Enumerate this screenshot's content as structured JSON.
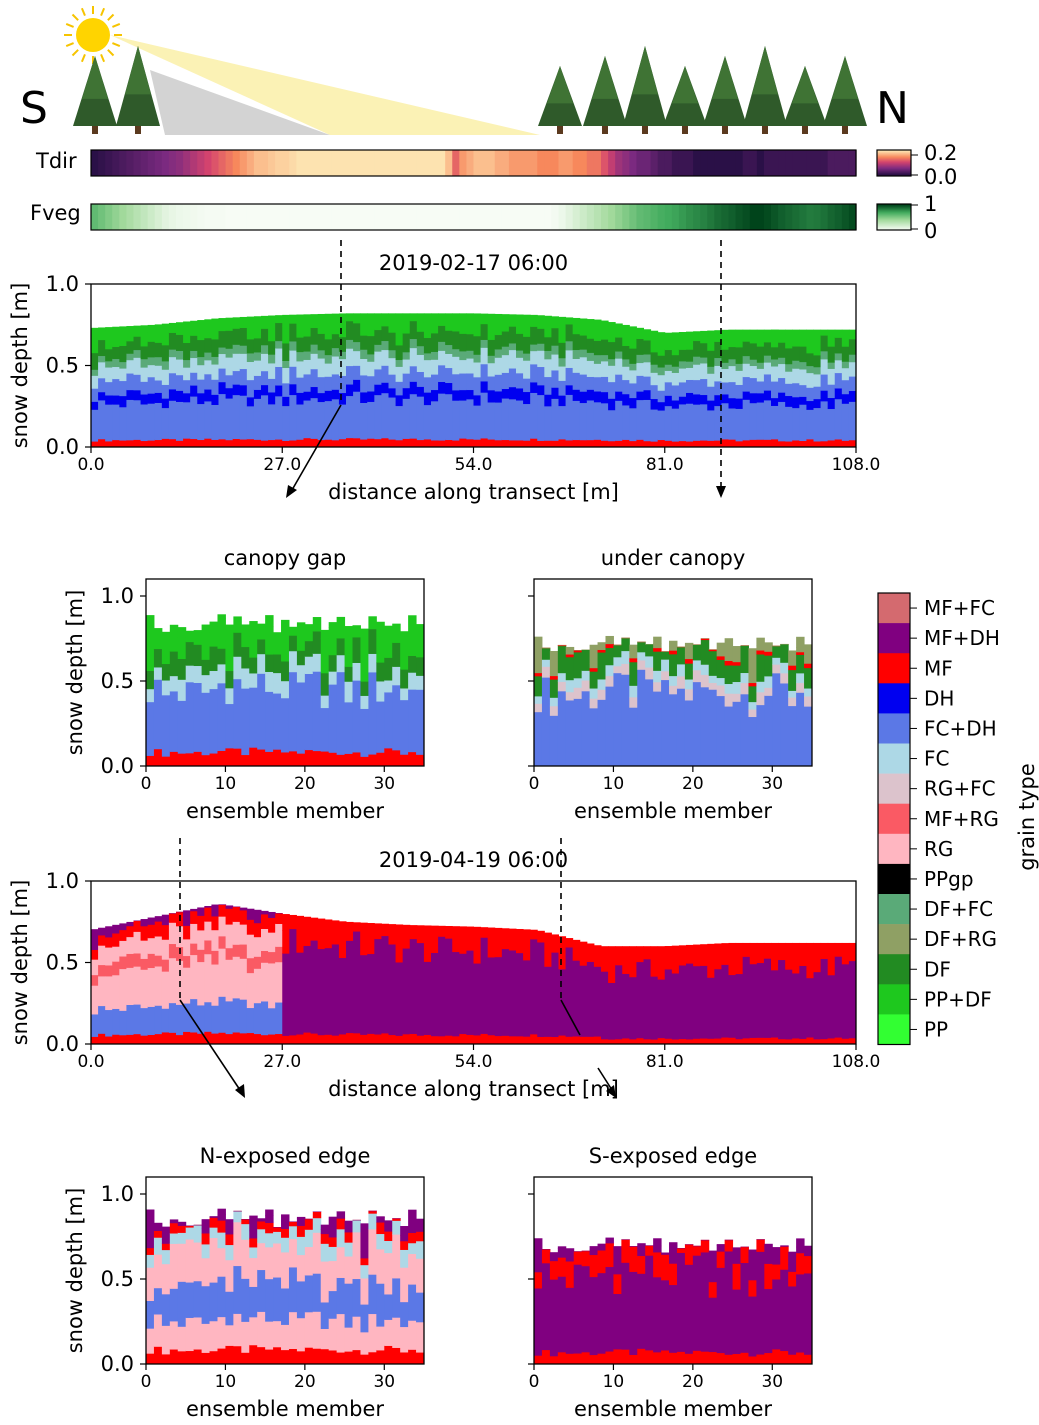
{
  "header": {
    "south": "S",
    "north": "N"
  },
  "strips": {
    "tdir": {
      "label": "Tdir",
      "cb_max": "0.2",
      "cb_min": "0.0",
      "values": [
        0.01,
        0.015,
        0.02,
        0.025,
        0.03,
        0.035,
        0.04,
        0.045,
        0.05,
        0.055,
        0.06,
        0.065,
        0.07,
        0.08,
        0.09,
        0.1,
        0.11,
        0.12,
        0.13,
        0.14,
        0.15,
        0.16,
        0.17,
        0.18,
        0.18,
        0.185,
        0.19,
        0.19,
        0.195,
        0.2,
        0.2,
        0.2,
        0.2,
        0.2,
        0.2,
        0.2,
        0.2,
        0.2,
        0.2,
        0.2,
        0.2,
        0.2,
        0.2,
        0.2,
        0.2,
        0.2,
        0.2,
        0.2,
        0.2,
        0.2,
        0.18,
        0.13,
        0.16,
        0.17,
        0.18,
        0.18,
        0.18,
        0.17,
        0.17,
        0.16,
        0.16,
        0.16,
        0.16,
        0.15,
        0.15,
        0.15,
        0.16,
        0.16,
        0.15,
        0.15,
        0.14,
        0.14,
        0.12,
        0.1,
        0.08,
        0.07,
        0.06,
        0.05,
        0.05,
        0.04,
        0.03,
        0.03,
        0.02,
        0.02,
        0.02,
        0.01,
        0.01,
        0.01,
        0.01,
        0.01,
        0.01,
        0.01,
        0.02,
        0.02,
        0.01,
        0.02,
        0.02,
        0.02,
        0.02,
        0.02,
        0.02,
        0.02,
        0.02,
        0.02,
        0.03,
        0.03,
        0.03,
        0.03
      ]
    },
    "fveg": {
      "label": "Fveg",
      "cb_max": "1",
      "cb_min": "0",
      "values": [
        0.6,
        0.55,
        0.5,
        0.45,
        0.4,
        0.35,
        0.3,
        0.25,
        0.2,
        0.15,
        0.1,
        0.07,
        0.05,
        0.04,
        0.03,
        0.02,
        0.01,
        0.01,
        0.01,
        0.0,
        0.0,
        0.0,
        0.0,
        0.0,
        0.0,
        0.0,
        0.0,
        0.0,
        0.0,
        0.0,
        0.0,
        0.0,
        0.0,
        0.0,
        0.0,
        0.0,
        0.0,
        0.0,
        0.0,
        0.0,
        0.0,
        0.0,
        0.0,
        0.0,
        0.0,
        0.0,
        0.0,
        0.0,
        0.0,
        0.0,
        0.0,
        0.0,
        0.0,
        0.0,
        0.0,
        0.0,
        0.0,
        0.0,
        0.0,
        0.0,
        0.0,
        0.0,
        0.0,
        0.0,
        0.0,
        0.02,
        0.05,
        0.1,
        0.15,
        0.2,
        0.25,
        0.3,
        0.35,
        0.4,
        0.45,
        0.5,
        0.55,
        0.6,
        0.62,
        0.65,
        0.68,
        0.7,
        0.72,
        0.75,
        0.78,
        0.8,
        0.82,
        0.85,
        0.88,
        0.9,
        0.92,
        0.95,
        0.97,
        1.0,
        1.0,
        0.98,
        0.95,
        0.92,
        0.9,
        0.88,
        0.86,
        0.84,
        0.85,
        0.87,
        0.9,
        0.92,
        0.95,
        0.98
      ]
    }
  },
  "legend": {
    "title": "grain type",
    "items": [
      {
        "label": "MF+FC",
        "color": "#d46a6f"
      },
      {
        "label": "MF+DH",
        "color": "#800080"
      },
      {
        "label": "MF",
        "color": "#ff0000"
      },
      {
        "label": "DH",
        "color": "#0000f0"
      },
      {
        "label": "FC+DH",
        "color": "#5b78e6"
      },
      {
        "label": "FC",
        "color": "#add8e6"
      },
      {
        "label": "RG+FC",
        "color": "#dcc3cc"
      },
      {
        "label": "MF+RG",
        "color": "#fa5a64"
      },
      {
        "label": "RG",
        "color": "#ffb6c1"
      },
      {
        "label": "PPgp",
        "color": "#000000"
      },
      {
        "label": "DF+FC",
        "color": "#5aaa78"
      },
      {
        "label": "DF+RG",
        "color": "#8fa064"
      },
      {
        "label": "DF",
        "color": "#228b22"
      },
      {
        "label": "PP+DF",
        "color": "#1ec81e"
      },
      {
        "label": "PP",
        "color": "#32ff32"
      }
    ]
  },
  "chart_data": [
    {
      "type": "area",
      "title": "2019-02-17 06:00",
      "xlabel": "distance along transect [m]",
      "ylabel": "snow depth [m]",
      "xlim": [
        0,
        108
      ],
      "ylim": [
        0,
        1.0
      ],
      "xticks": [
        "0.0",
        "27.0",
        "54.0",
        "81.0",
        "108.0"
      ],
      "yticks": [
        "0.0",
        "0.5",
        "1.0"
      ],
      "x": [
        0,
        9,
        18,
        27,
        36,
        45,
        54,
        63,
        72,
        81,
        90,
        99,
        108
      ],
      "depth": [
        0.73,
        0.75,
        0.79,
        0.81,
        0.82,
        0.82,
        0.82,
        0.81,
        0.78,
        0.7,
        0.72,
        0.72,
        0.72
      ],
      "layers_bottom_up": [
        {
          "grain": "MF",
          "fraction": 0.06
        },
        {
          "grain": "FC+DH",
          "fraction": 0.3
        },
        {
          "grain": "DH",
          "fraction": 0.08
        },
        {
          "grain": "FC+DH",
          "fraction": 0.12
        },
        {
          "grain": "FC",
          "fraction": 0.12
        },
        {
          "grain": "DF+FC",
          "fraction": 0.06
        },
        {
          "grain": "DF",
          "fraction": 0.12
        },
        {
          "grain": "PP+DF",
          "fraction": 0.14
        }
      ]
    },
    {
      "type": "heatmap",
      "title": "canopy gap",
      "xlabel": "ensemble member",
      "ylabel": "snow depth [m]",
      "xlim": [
        0,
        35
      ],
      "ylim": [
        0,
        1.1
      ],
      "xticks": [
        "0",
        "10",
        "20",
        "30"
      ],
      "yticks": [
        "0.0",
        "0.5",
        "1.0"
      ],
      "member_depth_mean": 0.84,
      "layers_bottom_up": [
        {
          "grain": "MF",
          "fraction": 0.1
        },
        {
          "grain": "FC+DH",
          "fraction": 0.44
        },
        {
          "grain": "FC",
          "fraction": 0.12
        },
        {
          "grain": "DF",
          "fraction": 0.14
        },
        {
          "grain": "PP+DF",
          "fraction": 0.2
        }
      ]
    },
    {
      "type": "heatmap",
      "title": "under canopy",
      "xlabel": "ensemble member",
      "ylabel": "",
      "xlim": [
        0,
        35
      ],
      "ylim": [
        0,
        1.1
      ],
      "xticks": [
        "0",
        "10",
        "20",
        "30"
      ],
      "yticks": [],
      "member_depth_mean": 0.72,
      "layers_bottom_up": [
        {
          "grain": "FC+DH",
          "fraction": 0.6
        },
        {
          "grain": "RG+FC",
          "fraction": 0.08
        },
        {
          "grain": "FC",
          "fraction": 0.08
        },
        {
          "grain": "DF",
          "fraction": 0.18
        },
        {
          "grain": "MF",
          "fraction": 0.03
        },
        {
          "grain": "DF+RG",
          "fraction": 0.03
        }
      ]
    },
    {
      "type": "area",
      "title": "2019-04-19 06:00",
      "xlabel": "distance along transect [m]",
      "ylabel": "snow depth [m]",
      "xlim": [
        0,
        108
      ],
      "ylim": [
        0,
        1.0
      ],
      "xticks": [
        "0.0",
        "27.0",
        "54.0",
        "81.0",
        "108.0"
      ],
      "yticks": [
        "0.0",
        "0.5",
        "1.0"
      ],
      "x": [
        0,
        9,
        18,
        27,
        36,
        45,
        54,
        63,
        72,
        81,
        90,
        99,
        108
      ],
      "depth": [
        0.7,
        0.78,
        0.86,
        0.8,
        0.75,
        0.73,
        0.72,
        0.7,
        0.6,
        0.6,
        0.62,
        0.62,
        0.62
      ],
      "segments": [
        {
          "x_end": 27,
          "layers_bottom_up": [
            {
              "grain": "MF",
              "fraction": 0.08
            },
            {
              "grain": "FC+DH",
              "fraction": 0.22
            },
            {
              "grain": "RG",
              "fraction": 0.3
            },
            {
              "grain": "MF+RG",
              "fraction": 0.1
            },
            {
              "grain": "RG",
              "fraction": 0.15
            },
            {
              "grain": "MF",
              "fraction": 0.1
            },
            {
              "grain": "MF+DH",
              "fraction": 0.05
            }
          ]
        },
        {
          "x_end": 72,
          "layers_bottom_up": [
            {
              "grain": "MF",
              "fraction": 0.08
            },
            {
              "grain": "MF+DH",
              "fraction": 0.72
            },
            {
              "grain": "MF",
              "fraction": 0.2
            }
          ]
        },
        {
          "x_end": 108,
          "layers_bottom_up": [
            {
              "grain": "MF",
              "fraction": 0.06
            },
            {
              "grain": "MF+DH",
              "fraction": 0.7
            },
            {
              "grain": "MF",
              "fraction": 0.24
            }
          ]
        }
      ]
    },
    {
      "type": "heatmap",
      "title": "N-exposed edge",
      "xlabel": "ensemble member",
      "ylabel": "snow depth [m]",
      "xlim": [
        0,
        35
      ],
      "ylim": [
        0,
        1.1
      ],
      "xticks": [
        "0",
        "10",
        "20",
        "30"
      ],
      "yticks": [
        "0.0",
        "0.5",
        "1.0"
      ],
      "member_depth_mean": 0.86,
      "layers_bottom_up": [
        {
          "grain": "MF",
          "fraction": 0.1
        },
        {
          "grain": "RG",
          "fraction": 0.2
        },
        {
          "grain": "FC+DH",
          "fraction": 0.25
        },
        {
          "grain": "RG",
          "fraction": 0.25
        },
        {
          "grain": "FC",
          "fraction": 0.1
        },
        {
          "grain": "MF",
          "fraction": 0.06
        },
        {
          "grain": "MF+DH",
          "fraction": 0.04
        }
      ]
    },
    {
      "type": "heatmap",
      "title": "S-exposed edge",
      "xlabel": "ensemble member",
      "ylabel": "",
      "xlim": [
        0,
        35
      ],
      "ylim": [
        0,
        1.1
      ],
      "xticks": [
        "0",
        "10",
        "20",
        "30"
      ],
      "yticks": [],
      "member_depth_mean": 0.7,
      "layers_bottom_up": [
        {
          "grain": "MF",
          "fraction": 0.1
        },
        {
          "grain": "MF+DH",
          "fraction": 0.66
        },
        {
          "grain": "MF",
          "fraction": 0.18
        },
        {
          "grain": "MF+DH",
          "fraction": 0.06
        }
      ]
    }
  ]
}
